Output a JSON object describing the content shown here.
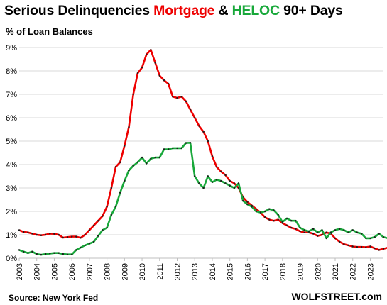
{
  "title": {
    "part1": "Serious Delinquencies ",
    "mortgage": "Mortgage",
    "amp": " & ",
    "heloc": "HELOC",
    "part2": " 90+ Days"
  },
  "subtitle": "% of Loan Balances",
  "source": "Source: New York Fed",
  "brand": "WOLFSTREET.com",
  "colors": {
    "mortgage": "#ee0000",
    "heloc": "#18a83a",
    "marker": "#1e1e1e",
    "grid": "#d9d9d9",
    "axis": "#bfbfbf"
  },
  "chart_data": {
    "type": "line",
    "title": "Serious Delinquencies Mortgage & HELOC 90+ Days",
    "ylabel": "% of Loan Balances",
    "ylim": [
      0,
      9
    ],
    "yticks": [
      "0%",
      "1%",
      "2%",
      "3%",
      "4%",
      "5%",
      "6%",
      "7%",
      "8%",
      "9%"
    ],
    "xlim": [
      2003,
      2023.75
    ],
    "xticks": [
      "2003",
      "2004",
      "2005",
      "2006",
      "2007",
      "2008",
      "2009",
      "2010",
      "2011",
      "2012",
      "2013",
      "2014",
      "2015",
      "2016",
      "2017",
      "2018",
      "2019",
      "2020",
      "2021",
      "2022",
      "2023"
    ],
    "grid": true,
    "start_year": 2003,
    "series": [
      {
        "name": "Mortgage",
        "values": [
          1.2,
          1.12,
          1.1,
          1.05,
          1.0,
          0.98,
          1.0,
          1.05,
          1.04,
          1.0,
          0.88,
          0.9,
          0.92,
          0.92,
          0.87,
          1.0,
          1.2,
          1.4,
          1.6,
          1.8,
          2.2,
          3.0,
          3.9,
          4.1,
          4.8,
          5.6,
          7.0,
          7.9,
          8.15,
          8.7,
          8.9,
          8.35,
          7.8,
          7.6,
          7.45,
          6.9,
          6.85,
          6.9,
          6.7,
          6.35,
          6.0,
          5.65,
          5.4,
          5.0,
          4.35,
          3.9,
          3.7,
          3.55,
          3.3,
          3.2,
          3.0,
          2.6,
          2.4,
          2.25,
          2.1,
          1.95,
          1.75,
          1.65,
          1.6,
          1.65,
          1.5,
          1.4,
          1.3,
          1.25,
          1.15,
          1.1,
          1.1,
          1.05,
          0.95,
          1.0,
          1.1,
          1.05,
          0.85,
          0.7,
          0.6,
          0.55,
          0.5,
          0.48,
          0.48,
          0.47,
          0.5,
          0.42,
          0.35,
          0.4,
          0.45,
          0.5,
          0.52
        ]
      },
      {
        "name": "HELOC",
        "values": [
          0.35,
          0.28,
          0.22,
          0.28,
          0.18,
          0.15,
          0.18,
          0.2,
          0.22,
          0.22,
          0.18,
          0.16,
          0.16,
          0.35,
          0.45,
          0.55,
          0.62,
          0.7,
          0.95,
          1.2,
          1.3,
          1.85,
          2.2,
          2.8,
          3.3,
          3.75,
          3.95,
          4.1,
          4.3,
          4.05,
          4.25,
          4.3,
          4.3,
          4.65,
          4.65,
          4.7,
          4.7,
          4.7,
          4.92,
          4.93,
          3.5,
          3.2,
          3.0,
          3.5,
          3.25,
          3.35,
          3.3,
          3.2,
          3.1,
          3.0,
          3.2,
          2.45,
          2.3,
          2.2,
          2.0,
          1.95,
          2.0,
          2.1,
          2.05,
          1.85,
          1.55,
          1.7,
          1.6,
          1.6,
          1.3,
          1.2,
          1.15,
          1.25,
          1.1,
          1.2,
          0.85,
          1.1,
          1.2,
          1.25,
          1.2,
          1.1,
          1.2,
          1.1,
          1.05,
          0.85,
          0.85,
          0.9,
          1.05,
          0.9,
          0.85,
          0.7,
          0.78
        ]
      }
    ]
  }
}
